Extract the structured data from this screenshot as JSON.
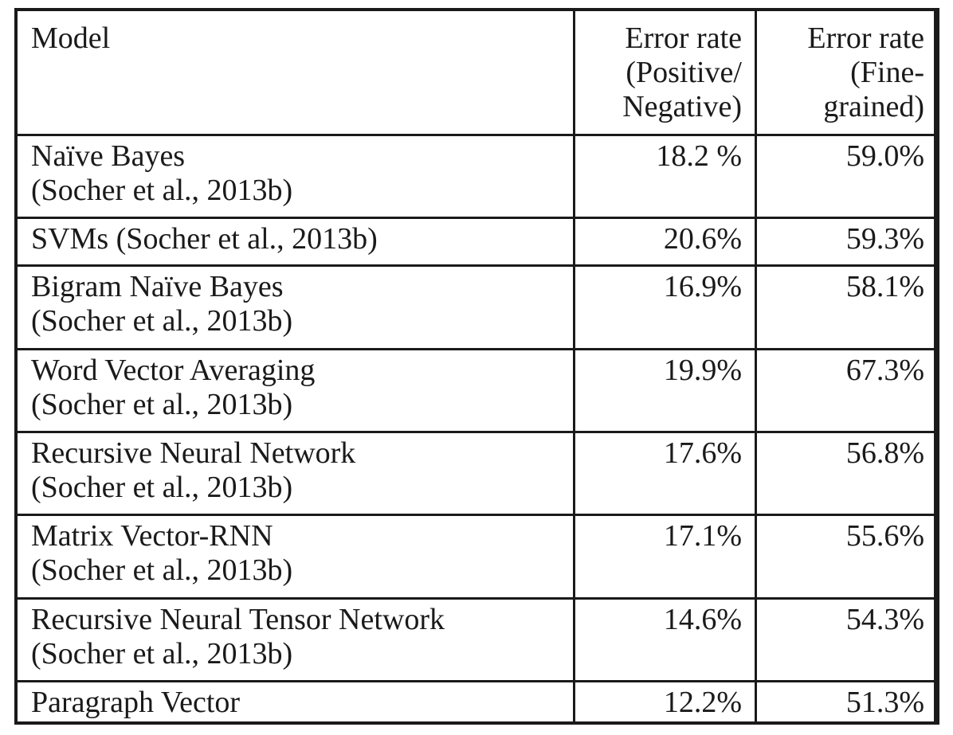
{
  "table": {
    "headers": {
      "model": "Model",
      "positive_negative": [
        "Error rate",
        "(Positive/",
        "Negative)"
      ],
      "fine_grained": [
        "Error rate",
        "(Fine-",
        "grained)"
      ]
    },
    "rows": [
      {
        "model": "Naïve Bayes",
        "citation": "(Socher et al., 2013b)",
        "positive_negative": "18.2 %",
        "fine_grained": "59.0%"
      },
      {
        "model": "SVMs (Socher et al., 2013b)",
        "citation": "",
        "positive_negative": "20.6%",
        "fine_grained": "59.3%"
      },
      {
        "model": "Bigram Naïve Bayes",
        "citation": "(Socher et al., 2013b)",
        "positive_negative": "16.9%",
        "fine_grained": "58.1%"
      },
      {
        "model": "Word Vector Averaging",
        "citation": "(Socher et al., 2013b)",
        "positive_negative": "19.9%",
        "fine_grained": "67.3%"
      },
      {
        "model": "Recursive Neural Network",
        "citation": "(Socher et al., 2013b)",
        "positive_negative": "17.6%",
        "fine_grained": "56.8%"
      },
      {
        "model": "Matrix Vector-RNN",
        "citation": "(Socher et al., 2013b)",
        "positive_negative": "17.1%",
        "fine_grained": "55.6%"
      },
      {
        "model": "Recursive Neural Tensor Network",
        "citation": "(Socher et al., 2013b)",
        "positive_negative": "14.6%",
        "fine_grained": "54.3%"
      },
      {
        "model": "Paragraph Vector",
        "citation": "",
        "positive_negative": "12.2%",
        "fine_grained": "51.3%",
        "bold_values": true
      }
    ]
  }
}
